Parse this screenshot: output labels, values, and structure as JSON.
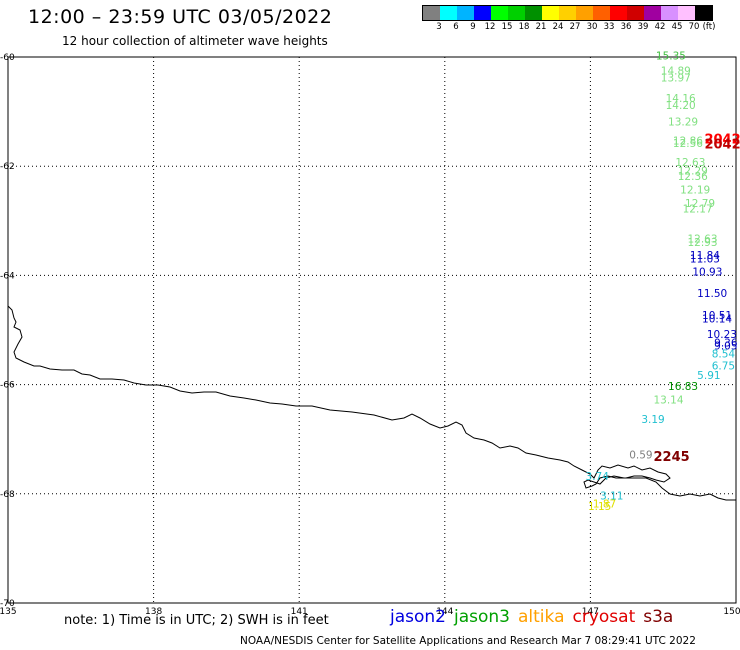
{
  "header": {
    "title": "12:00 – 23:59 UTC 03/05/2022",
    "subtitle": "12 hour collection of altimeter wave heights"
  },
  "colorbar": {
    "colors": [
      "#808080",
      "#00ffff",
      "#00b4ff",
      "#0000ff",
      "#00ff00",
      "#00d000",
      "#009000",
      "#ffff00",
      "#ffd000",
      "#ffa000",
      "#ff6000",
      "#ff0000",
      "#d00000",
      "#a000a0",
      "#d890ff",
      "#ffc0ff",
      "#000000"
    ],
    "labels": [
      "3",
      "6",
      "9",
      "12",
      "15",
      "18",
      "21",
      "24",
      "27",
      "30",
      "33",
      "36",
      "39",
      "42",
      "45",
      "70",
      "(ft)"
    ]
  },
  "axes": {
    "lon_labels": [
      "135",
      "138",
      "141",
      "144",
      "147",
      "150"
    ],
    "lat_labels": [
      "-60",
      "-62",
      "-64",
      "-66",
      "-68",
      "-70"
    ],
    "lon_range": [
      135,
      150
    ],
    "lat_range": [
      -60,
      -70
    ]
  },
  "observations": [
    {
      "text": "15.35",
      "color": "#40c040",
      "lon": 148.35,
      "lat": -60.05
    },
    {
      "text": "14.89",
      "color": "#80e080",
      "lon": 148.45,
      "lat": -60.32
    },
    {
      "text": "13.97",
      "color": "#80e080",
      "lon": 148.45,
      "lat": -60.45
    },
    {
      "text": "14.16",
      "color": "#80e080",
      "lon": 148.55,
      "lat": -60.82
    },
    {
      "text": "14.20",
      "color": "#80e080",
      "lon": 148.55,
      "lat": -60.95
    },
    {
      "text": "13.29",
      "color": "#80e080",
      "lon": 148.6,
      "lat": -61.25
    },
    {
      "text": "12.86",
      "color": "#80e080",
      "lon": 148.7,
      "lat": -61.6
    },
    {
      "text": "12.56",
      "color": "#80e080",
      "lon": 148.7,
      "lat": -61.65
    },
    {
      "text": "12.63",
      "color": "#80e080",
      "lon": 148.75,
      "lat": -62.0
    },
    {
      "text": "12.29",
      "color": "#80e080",
      "lon": 148.8,
      "lat": -62.15
    },
    {
      "text": "12.36",
      "color": "#80e080",
      "lon": 148.8,
      "lat": -62.25
    },
    {
      "text": "12.19",
      "color": "#80e080",
      "lon": 148.85,
      "lat": -62.5
    },
    {
      "text": "12.79",
      "color": "#80e080",
      "lon": 148.95,
      "lat": -62.75
    },
    {
      "text": "12.17",
      "color": "#80e080",
      "lon": 148.9,
      "lat": -62.85
    },
    {
      "text": "12.63",
      "color": "#80e080",
      "lon": 149.0,
      "lat": -63.4
    },
    {
      "text": "12.93",
      "color": "#80e080",
      "lon": 149.0,
      "lat": -63.46
    },
    {
      "text": "11.84",
      "color": "#0000c0",
      "lon": 149.05,
      "lat": -63.7
    },
    {
      "text": "11.03",
      "color": "#0000c0",
      "lon": 149.05,
      "lat": -63.76
    },
    {
      "text": "10.93",
      "color": "#0000c0",
      "lon": 149.1,
      "lat": -64.0
    },
    {
      "text": "11.50",
      "color": "#0000c0",
      "lon": 149.2,
      "lat": -64.4
    },
    {
      "text": "10.51",
      "color": "#0000c0",
      "lon": 149.3,
      "lat": -64.8
    },
    {
      "text": "10.14",
      "color": "#0000c0",
      "lon": 149.3,
      "lat": -64.86
    },
    {
      "text": "10.23",
      "color": "#0000c0",
      "lon": 149.4,
      "lat": -65.15
    },
    {
      "text": "9.36",
      "color": "#0000c0",
      "lon": 149.55,
      "lat": -65.3
    },
    {
      "text": "9.05",
      "color": "#0000c0",
      "lon": 149.55,
      "lat": -65.36
    },
    {
      "text": "8.54",
      "color": "#20c0d0",
      "lon": 149.5,
      "lat": -65.5
    },
    {
      "text": "6.75",
      "color": "#20c0d0",
      "lon": 149.5,
      "lat": -65.72
    },
    {
      "text": "5.91",
      "color": "#20c0d0",
      "lon": 149.2,
      "lat": -65.9
    },
    {
      "text": "16.83",
      "color": "#009000",
      "lon": 148.6,
      "lat": -66.1
    },
    {
      "text": "13.14",
      "color": "#80e080",
      "lon": 148.3,
      "lat": -66.35
    },
    {
      "text": "3.19",
      "color": "#20c0d0",
      "lon": 148.05,
      "lat": -66.7
    },
    {
      "text": "0.59",
      "color": "#808080",
      "lon": 147.8,
      "lat": -67.35
    },
    {
      "text": "3.74",
      "color": "#20c0d0",
      "lon": 146.9,
      "lat": -67.75
    },
    {
      "text": "3.11",
      "color": "#20c0d0",
      "lon": 147.2,
      "lat": -68.1
    },
    {
      "text": "1.87",
      "color": "#e0e000",
      "lon": 147.05,
      "lat": -68.25
    },
    {
      "text": "1.15",
      "color": "#e0e000",
      "lon": 146.95,
      "lat": -68.3
    }
  ],
  "stamps": [
    {
      "text": "2042",
      "color": "#ff0000",
      "lon": 149.35,
      "lat": -61.58
    },
    {
      "text": "2042",
      "color": "#c00000",
      "lon": 149.35,
      "lat": -61.68
    },
    {
      "text": "2245",
      "color": "#800000",
      "lon": 148.3,
      "lat": -67.4
    }
  ],
  "footer": {
    "note": "note: 1) Time is in UTC; 2) SWH is in feet",
    "credit": "NOAA/NESDIS Center for Satellite Applications and Research   Mar  7 08:29:41 UTC 2022"
  },
  "satellites": [
    {
      "name": "jason2",
      "color": "#0000e0"
    },
    {
      "name": "jason3",
      "color": "#00a000"
    },
    {
      "name": "altika",
      "color": "#ffa000"
    },
    {
      "name": "cryosat",
      "color": "#e00000"
    },
    {
      "name": "s3a",
      "color": "#800000"
    }
  ]
}
